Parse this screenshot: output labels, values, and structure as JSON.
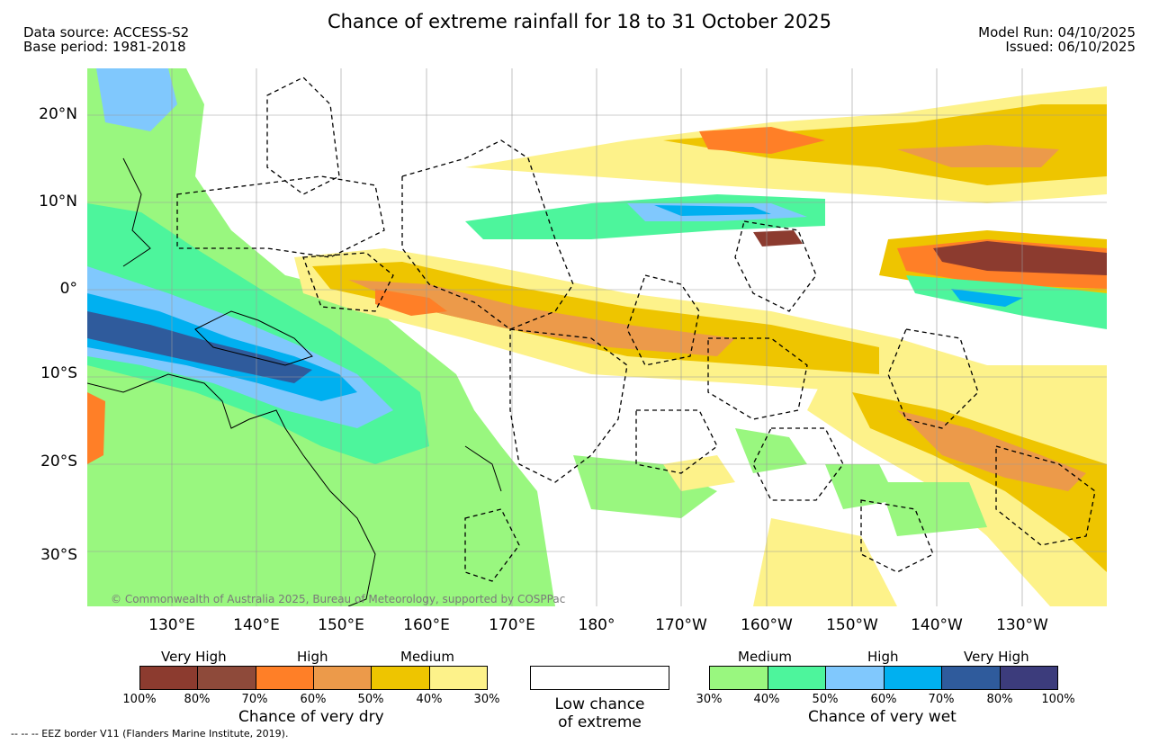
{
  "header": {
    "title": "Chance of extreme rainfall for 18 to 31 October 2025",
    "data_source": "Data source: ACCESS-S2",
    "base_period": "Base period: 1981-2018",
    "model_run": "Model Run: 04/10/2025",
    "issued": "Issued: 06/10/2025"
  },
  "map": {
    "lat_labels": [
      "20°N",
      "10°N",
      "0°",
      "10°S",
      "20°S",
      "30°S"
    ],
    "lon_labels": [
      "130°E",
      "140°E",
      "150°E",
      "160°E",
      "170°E",
      "180°",
      "170°W",
      "160°W",
      "150°W",
      "140°W",
      "130°W"
    ],
    "copyright": "© Commonwealth of Australia 2025, Bureau of Meteorology, supported by COSPPac"
  },
  "legend": {
    "dry": {
      "headings": [
        "Very High",
        "High",
        "Medium"
      ],
      "ticks": [
        "100%",
        "80%",
        "70%",
        "60%",
        "50%",
        "40%",
        "30%"
      ],
      "colors": [
        "#8c3b2f",
        "#8e4a3a",
        "#ff7f27",
        "#ec9a4a",
        "#eec500",
        "#fdf28a"
      ],
      "title": "Chance of very dry"
    },
    "low": {
      "text_line1": "Low chance",
      "text_line2": "of extreme"
    },
    "wet": {
      "headings": [
        "Medium",
        "High",
        "Very High"
      ],
      "ticks": [
        "30%",
        "40%",
        "50%",
        "60%",
        "70%",
        "80%",
        "100%"
      ],
      "colors": [
        "#99f77f",
        "#4df59c",
        "#80c8fd",
        "#00b0f0",
        "#2f5b9c",
        "#3c3c7c"
      ],
      "title": "Chance of very wet"
    },
    "eez_note": "-- -- -- EEZ border V11 (Flanders Marine Institute, 2019)."
  }
}
